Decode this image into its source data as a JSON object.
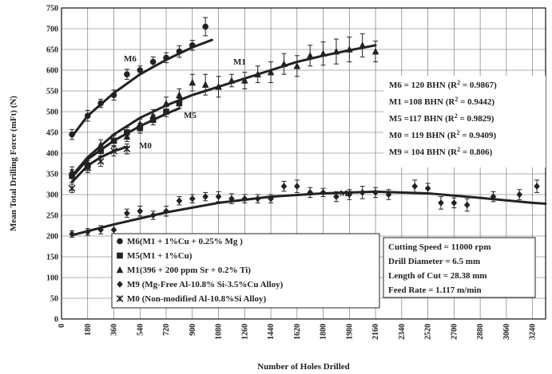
{
  "chart_data": {
    "type": "scatter",
    "title": "",
    "xlabel": "Number of Holes Drilled",
    "ylabel": "Mean Total Drilling Force (mFt) (N)",
    "xlim": [
      0,
      3330
    ],
    "ylim": [
      0,
      750
    ],
    "x_ticks": [
      "0",
      "180",
      "360",
      "540",
      "720",
      "900",
      "1080",
      "1260",
      "1440",
      "1620",
      "1800",
      "1980",
      "2160",
      "2340",
      "2520",
      "2700",
      "2880",
      "3060",
      "3240"
    ],
    "y_ticks": [
      "0",
      "50",
      "100",
      "150",
      "200",
      "250",
      "300",
      "350",
      "400",
      "450",
      "500",
      "550",
      "600",
      "650",
      "700",
      "750"
    ],
    "grid": true,
    "series": [
      {
        "name": "M6(M1 + 1%Cu + 0.25% Mg )",
        "marker": "circle",
        "label": "M6",
        "points": [
          [
            72,
            445,
            12
          ],
          [
            180,
            490,
            13
          ],
          [
            270,
            520,
            10
          ],
          [
            360,
            540,
            12
          ],
          [
            450,
            590,
            12
          ],
          [
            540,
            600,
            10
          ],
          [
            630,
            620,
            12
          ],
          [
            720,
            630,
            12
          ],
          [
            810,
            645,
            14
          ],
          [
            900,
            660,
            12
          ],
          [
            990,
            705,
            22
          ]
        ],
        "fit": [
          [
            72,
            440
          ],
          [
            180,
            490
          ],
          [
            360,
            545
          ],
          [
            540,
            590
          ],
          [
            720,
            625
          ],
          [
            900,
            655
          ],
          [
            1035,
            673
          ]
        ]
      },
      {
        "name": "M5(M1 + 1%Cu)",
        "marker": "square",
        "label": "M5",
        "points": [
          [
            72,
            345,
            15
          ],
          [
            180,
            370,
            12
          ],
          [
            270,
            405,
            12
          ],
          [
            360,
            430,
            12
          ],
          [
            450,
            450,
            12
          ],
          [
            540,
            460,
            12
          ],
          [
            630,
            480,
            12
          ],
          [
            720,
            500,
            12
          ],
          [
            810,
            520,
            12
          ]
        ],
        "fit": [
          [
            72,
            342
          ],
          [
            180,
            385
          ],
          [
            360,
            430
          ],
          [
            540,
            465
          ],
          [
            720,
            495
          ],
          [
            810,
            508
          ]
        ]
      },
      {
        "name": "M1(396 + 200 ppm Sr + 0.2% Ti)",
        "marker": "triangle",
        "label": "M1",
        "points": [
          [
            72,
            355,
            12
          ],
          [
            180,
            375,
            12
          ],
          [
            270,
            420,
            12
          ],
          [
            360,
            430,
            15
          ],
          [
            450,
            440,
            12
          ],
          [
            540,
            470,
            12
          ],
          [
            630,
            490,
            15
          ],
          [
            720,
            520,
            15
          ],
          [
            810,
            540,
            15
          ],
          [
            900,
            570,
            20
          ],
          [
            990,
            565,
            25
          ],
          [
            1080,
            560,
            25
          ],
          [
            1170,
            575,
            15
          ],
          [
            1260,
            575,
            20
          ],
          [
            1350,
            590,
            20
          ],
          [
            1440,
            595,
            25
          ],
          [
            1530,
            615,
            25
          ],
          [
            1620,
            610,
            25
          ],
          [
            1710,
            635,
            25
          ],
          [
            1800,
            640,
            28
          ],
          [
            1890,
            645,
            30
          ],
          [
            1980,
            650,
            30
          ],
          [
            2070,
            660,
            28
          ],
          [
            2160,
            645,
            25
          ]
        ],
        "fit": [
          [
            72,
            345
          ],
          [
            180,
            390
          ],
          [
            360,
            445
          ],
          [
            540,
            485
          ],
          [
            720,
            515
          ],
          [
            900,
            540
          ],
          [
            1080,
            560
          ],
          [
            1260,
            580
          ],
          [
            1440,
            600
          ],
          [
            1620,
            620
          ],
          [
            1800,
            635
          ],
          [
            1980,
            648
          ],
          [
            2160,
            660
          ]
        ]
      },
      {
        "name": "M9 (Mg-Free Al-10.8% Si-3.5%Cu Alloy)",
        "marker": "diamond",
        "label": "M9",
        "points": [
          [
            72,
            205,
            8
          ],
          [
            180,
            210,
            8
          ],
          [
            270,
            215,
            10
          ],
          [
            360,
            215,
            12
          ],
          [
            450,
            255,
            10
          ],
          [
            540,
            260,
            12
          ],
          [
            630,
            250,
            10
          ],
          [
            720,
            260,
            12
          ],
          [
            810,
            285,
            10
          ],
          [
            900,
            290,
            10
          ],
          [
            990,
            295,
            10
          ],
          [
            1080,
            295,
            12
          ],
          [
            1170,
            290,
            12
          ],
          [
            1260,
            290,
            10
          ],
          [
            1350,
            290,
            10
          ],
          [
            1440,
            290,
            10
          ],
          [
            1530,
            320,
            12
          ],
          [
            1620,
            320,
            15
          ],
          [
            1710,
            305,
            12
          ],
          [
            1800,
            305,
            10
          ],
          [
            1890,
            295,
            12
          ],
          [
            1980,
            300,
            12
          ],
          [
            2070,
            305,
            15
          ],
          [
            2160,
            305,
            12
          ],
          [
            2250,
            300,
            12
          ],
          [
            2430,
            320,
            15
          ],
          [
            2520,
            315,
            12
          ],
          [
            2610,
            280,
            15
          ],
          [
            2700,
            280,
            12
          ],
          [
            2790,
            275,
            15
          ],
          [
            2970,
            295,
            12
          ],
          [
            3150,
            300,
            12
          ],
          [
            3270,
            320,
            15
          ]
        ],
        "fit": [
          [
            72,
            202
          ],
          [
            360,
            228
          ],
          [
            720,
            257
          ],
          [
            1080,
            280
          ],
          [
            1440,
            295
          ],
          [
            1800,
            303
          ],
          [
            2160,
            307
          ],
          [
            2520,
            303
          ],
          [
            2880,
            292
          ],
          [
            3240,
            280
          ],
          [
            3330,
            278
          ]
        ]
      },
      {
        "name": "M0 (Non-modified Al-10.8%Si Alloy)",
        "marker": "star",
        "label": "M0",
        "points": [
          [
            72,
            315,
            10
          ],
          [
            180,
            365,
            12
          ],
          [
            270,
            380,
            12
          ],
          [
            360,
            405,
            12
          ],
          [
            450,
            410,
            12
          ]
        ],
        "fit": [
          [
            72,
            330
          ],
          [
            180,
            370
          ],
          [
            270,
            390
          ],
          [
            360,
            405
          ],
          [
            450,
            415
          ]
        ]
      }
    ],
    "annotations": {
      "r2_lines": [
        "M6 = 120 BHN (R",
        "M1 =108 BHN (R",
        "M5 =117 BHN (R",
        "M0 = 119 BHN (R",
        "M9 = 104 BHN (R"
      ],
      "r2_values": [
        "= 0.9867)",
        "= 0.9442)",
        "= 0.9829)",
        "= 0.9409)",
        "= 0.806)"
      ],
      "r2_sup": "2",
      "conditions": [
        "Cutting Speed = 11000 rpm",
        "Drill Diameter = 6.5 mm",
        "Length of Cut = 28.38 mm",
        "Feed Rate = 1.117 m/min"
      ]
    },
    "legend_placement": "bottom-center",
    "colors": {
      "ink": "#222222",
      "grid": "#666666",
      "background": "#ffffff"
    }
  }
}
